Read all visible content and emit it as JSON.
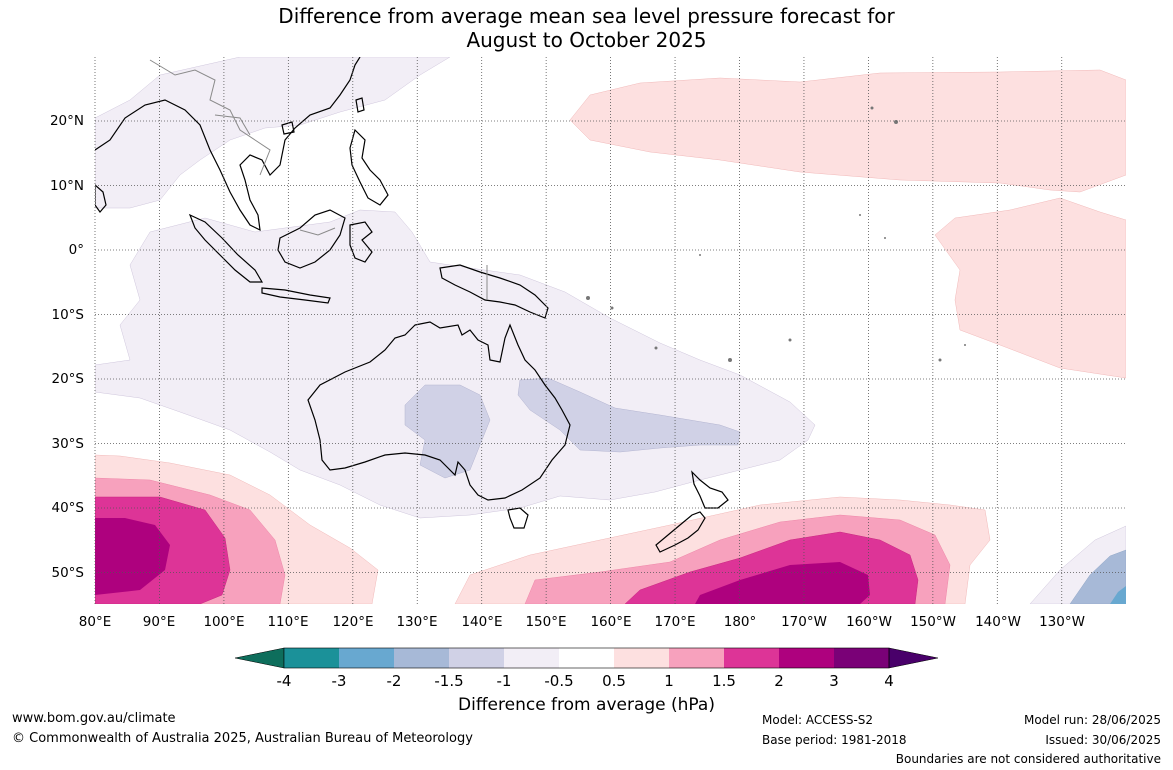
{
  "title": {
    "line1": "Difference from average mean sea level pressure forecast for",
    "line2": "August to October 2025"
  },
  "map": {
    "lat_labels": [
      "20°N",
      "10°N",
      "0°",
      "10°S",
      "20°S",
      "30°S",
      "40°S",
      "50°S"
    ],
    "lon_labels": [
      "80°E",
      "90°E",
      "100°E",
      "110°E",
      "120°E",
      "130°E",
      "140°E",
      "150°E",
      "160°E",
      "170°E",
      "180°",
      "170°W",
      "160°W",
      "150°W",
      "140°W",
      "130°W"
    ]
  },
  "colorbar": {
    "title": "Difference from average (hPa)",
    "tick_labels": [
      "-4",
      "-3",
      "-2",
      "-1.5",
      "-1",
      "-0.5",
      "0.5",
      "1",
      "1.5",
      "2",
      "3",
      "4"
    ],
    "colors": [
      "#0e6e5c",
      "#1b9199",
      "#68a8d0",
      "#a7b9d7",
      "#d0d1e6",
      "#f2eef6",
      "#ffffff",
      "#fde0e0",
      "#f7a1bd",
      "#dd3497",
      "#ae017e",
      "#7a0177",
      "#49006a"
    ]
  },
  "footer": {
    "website": "www.bom.gov.au/climate",
    "copyright": "© Commonwealth of Australia 2025, Australian Bureau of Meteorology",
    "model": "Model: ACCESS-S2",
    "base_period": "Base period: 1981-2018",
    "model_run": "Model run: 28/06/2025",
    "issued": "Issued: 30/06/2025",
    "disclaimer": "Boundaries are not considered authoritative"
  }
}
